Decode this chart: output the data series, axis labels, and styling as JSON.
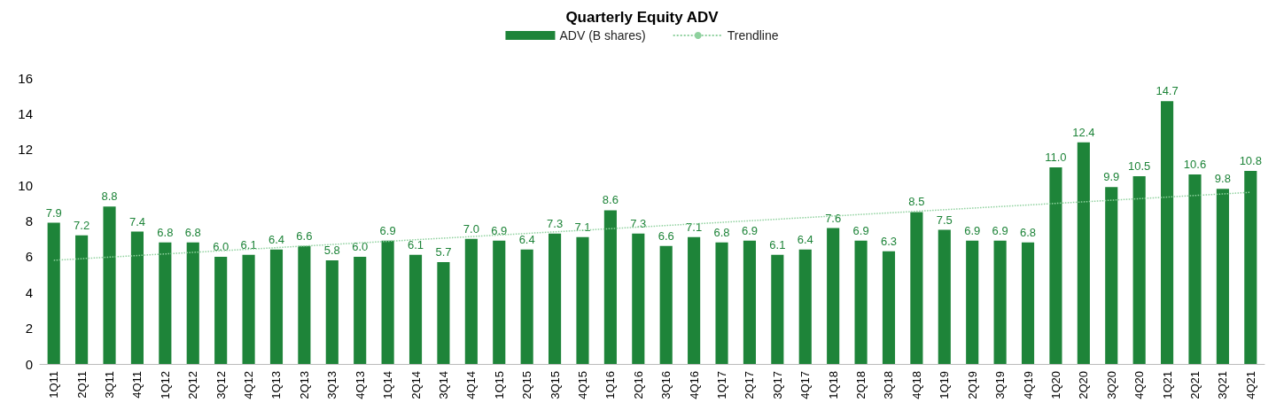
{
  "chart_data": {
    "type": "bar",
    "title": "Quarterly Equity ADV",
    "categories": [
      "1Q11",
      "2Q11",
      "3Q11",
      "4Q11",
      "1Q12",
      "2Q12",
      "3Q12",
      "4Q12",
      "1Q13",
      "2Q13",
      "3Q13",
      "4Q13",
      "1Q14",
      "2Q14",
      "3Q14",
      "4Q14",
      "1Q15",
      "2Q15",
      "3Q15",
      "4Q15",
      "1Q16",
      "2Q16",
      "3Q16",
      "4Q16",
      "1Q17",
      "2Q17",
      "3Q17",
      "4Q17",
      "1Q18",
      "2Q18",
      "3Q18",
      "4Q18",
      "1Q19",
      "2Q19",
      "3Q19",
      "4Q19",
      "1Q20",
      "2Q20",
      "3Q20",
      "4Q20",
      "1Q21",
      "2Q21",
      "3Q21",
      "4Q21"
    ],
    "series": [
      {
        "name": "ADV (B shares)",
        "color": "#1e8439",
        "values": [
          7.9,
          7.2,
          8.8,
          7.4,
          6.8,
          6.8,
          6.0,
          6.1,
          6.4,
          6.6,
          5.8,
          6.0,
          6.9,
          6.1,
          5.7,
          7.0,
          6.9,
          6.4,
          7.3,
          7.1,
          8.6,
          7.3,
          6.6,
          7.1,
          6.8,
          6.9,
          6.1,
          6.4,
          7.6,
          6.9,
          6.3,
          8.5,
          7.5,
          6.9,
          6.9,
          6.8,
          11.0,
          12.4,
          9.9,
          10.5,
          14.7,
          10.6,
          9.8,
          10.8
        ],
        "value_labels": [
          "7.9",
          "7.2",
          "8.8",
          "7.4",
          "6.8",
          "6.8",
          "6.0",
          "6.1",
          "6.4",
          "6.6",
          "5.8",
          "6.0",
          "6.9",
          "6.1",
          "5.7",
          "7.0",
          "6.9",
          "6.4",
          "7.3",
          "7.1",
          "8.6",
          "7.3",
          "6.6",
          "7.1",
          "6.8",
          "6.9",
          "6.1",
          "6.4",
          "7.6",
          "6.9",
          "6.3",
          "8.5",
          "7.5",
          "6.9",
          "6.9",
          "6.8",
          "11.0",
          "12.4",
          "9.9",
          "10.5",
          "14.7",
          "10.6",
          "9.8",
          "10.8"
        ]
      },
      {
        "name": "Trendline",
        "type": "line",
        "color": "#8fd19e",
        "line_style": "dotted",
        "marker": "none",
        "x": [
          "1Q11",
          "4Q21"
        ],
        "values": [
          5.8,
          9.6
        ]
      }
    ],
    "ylim": [
      0,
      16
    ],
    "yticks": [
      0,
      2,
      4,
      6,
      8,
      10,
      12,
      14,
      16
    ],
    "grid": false,
    "legend": "top"
  }
}
